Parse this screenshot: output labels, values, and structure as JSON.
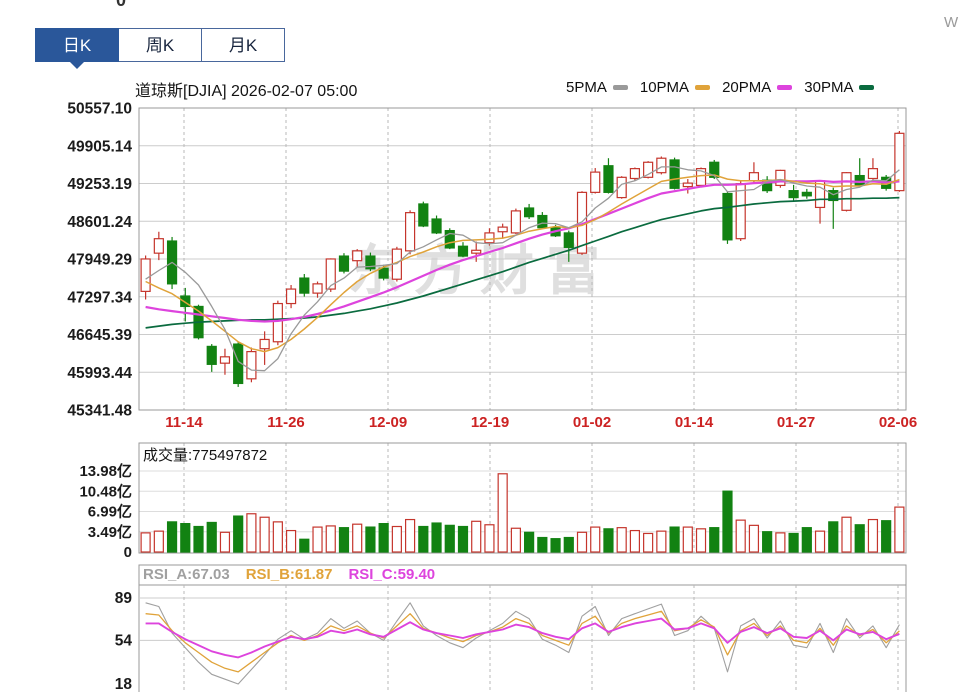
{
  "page": {
    "top_partial_text": "0",
    "corner_mark": "W",
    "watermark": "东方财富"
  },
  "tabs": [
    {
      "label": "日K",
      "active": true
    },
    {
      "label": "周K",
      "active": false
    },
    {
      "label": "月K",
      "active": false
    }
  ],
  "header": {
    "text": "道琼斯[DJIA] 2026-02-07 05:00"
  },
  "legend": [
    {
      "label": "5PMA",
      "color": "#9a9a9a"
    },
    {
      "label": "10PMA",
      "color": "#e0a33a"
    },
    {
      "label": "20PMA",
      "color": "#dd44dd"
    },
    {
      "label": "30PMA",
      "color": "#0a6b3f"
    }
  ],
  "volume_header": {
    "text": "成交量:775497872"
  },
  "rsi_header": [
    {
      "text": "RSI_A:67.03",
      "color": "#a0a0a0"
    },
    {
      "text": "RSI_B:61.87",
      "color": "#e0a33a"
    },
    {
      "text": "RSI_C:59.40",
      "color": "#dd44dd"
    }
  ],
  "colors": {
    "up": "#c5352c",
    "down": "#128212",
    "border": "#999999",
    "grid": "#cccccc",
    "vgrid": "#b9b9b9",
    "axis_label": "#1b1b1b",
    "date_label": "#cc2222",
    "tab_active_bg": "#2a579a",
    "tab_border": "#49679c"
  },
  "chart_data": {
    "type": "candlestick",
    "title": "道琼斯[DJIA]",
    "datetime": "2026-02-07 05:00",
    "panels": {
      "price": {
        "ymax": 50557.1,
        "ymin": 45341.48,
        "y_ticks": [
          "50557.10",
          "49905.14",
          "49253.19",
          "48601.24",
          "47949.29",
          "47297.34",
          "46645.39",
          "45993.44",
          "45341.48"
        ],
        "x_ticks": [
          "11-14",
          "11-26",
          "12-09",
          "12-19",
          "01-02",
          "01-14",
          "01-27",
          "02-06"
        ],
        "candles": [
          [
            47390,
            48010,
            47250,
            47950
          ],
          [
            48050,
            48420,
            47930,
            48300
          ],
          [
            48260,
            48330,
            47430,
            47520
          ],
          [
            47310,
            47450,
            46870,
            47130
          ],
          [
            47130,
            47160,
            46560,
            46590
          ],
          [
            46440,
            46480,
            46000,
            46130
          ],
          [
            46150,
            46400,
            45950,
            46260
          ],
          [
            46480,
            46520,
            45740,
            45800
          ],
          [
            45880,
            46420,
            45820,
            46350
          ],
          [
            46400,
            46700,
            46120,
            46560
          ],
          [
            46520,
            47230,
            46460,
            47180
          ],
          [
            47180,
            47500,
            47100,
            47430
          ],
          [
            47620,
            47690,
            47300,
            47360
          ],
          [
            47360,
            47560,
            47280,
            47520
          ],
          [
            47430,
            47960,
            47380,
            47950
          ],
          [
            48000,
            48050,
            47700,
            47740
          ],
          [
            47920,
            48120,
            47820,
            48090
          ],
          [
            48000,
            48060,
            47740,
            47780
          ],
          [
            47790,
            47850,
            47580,
            47620
          ],
          [
            47600,
            48160,
            47560,
            48120
          ],
          [
            48090,
            48790,
            48030,
            48750
          ],
          [
            48900,
            48940,
            48500,
            48520
          ],
          [
            48640,
            48700,
            48380,
            48400
          ],
          [
            48440,
            48480,
            48120,
            48140
          ],
          [
            48170,
            48240,
            47980,
            48000
          ],
          [
            48050,
            48250,
            47900,
            48100
          ],
          [
            48230,
            48480,
            48180,
            48400
          ],
          [
            48420,
            48560,
            48300,
            48500
          ],
          [
            48400,
            48820,
            48380,
            48780
          ],
          [
            48830,
            48900,
            48640,
            48680
          ],
          [
            48700,
            48760,
            48470,
            48490
          ],
          [
            48490,
            48540,
            48330,
            48350
          ],
          [
            48400,
            48440,
            47900,
            48150
          ],
          [
            48050,
            49120,
            48020,
            49100
          ],
          [
            49100,
            49520,
            49080,
            49450
          ],
          [
            49560,
            49690,
            49080,
            49100
          ],
          [
            49010,
            49380,
            48990,
            49360
          ],
          [
            49340,
            49530,
            49300,
            49510
          ],
          [
            49360,
            49640,
            49340,
            49620
          ],
          [
            49440,
            49720,
            49410,
            49690
          ],
          [
            49660,
            49700,
            49150,
            49170
          ],
          [
            49200,
            49330,
            49080,
            49260
          ],
          [
            49220,
            49530,
            49200,
            49510
          ],
          [
            49620,
            49660,
            49330,
            49360
          ],
          [
            49080,
            49120,
            48210,
            48280
          ],
          [
            48300,
            49300,
            48260,
            49250
          ],
          [
            49300,
            49620,
            49250,
            49440
          ],
          [
            49310,
            49380,
            49090,
            49130
          ],
          [
            49220,
            49490,
            49180,
            49480
          ],
          [
            49130,
            49230,
            48960,
            49010
          ],
          [
            49100,
            49160,
            48990,
            49040
          ],
          [
            48840,
            49310,
            48560,
            49300
          ],
          [
            49130,
            49180,
            48470,
            48960
          ],
          [
            48790,
            49450,
            48770,
            49440
          ],
          [
            49390,
            49690,
            49210,
            49220
          ],
          [
            49340,
            49690,
            49320,
            49510
          ],
          [
            49360,
            49400,
            49130,
            49170
          ],
          [
            49130,
            50160,
            49110,
            50120
          ]
        ],
        "ma": {
          "ma5": [
            47600,
            47750,
            47890,
            47720,
            47500,
            47130,
            46730,
            46180,
            46030,
            46020,
            46230,
            46660,
            46980,
            47210,
            47490,
            47620,
            47810,
            47820,
            47840,
            47870,
            48070,
            48160,
            48280,
            48390,
            48360,
            48230,
            48210,
            48230,
            48360,
            48490,
            48570,
            48560,
            48490,
            48590,
            48830,
            49000,
            49240,
            49300,
            49410,
            49540,
            49540,
            49490,
            49470,
            49390,
            49110,
            49130,
            49150,
            49290,
            49320,
            49260,
            49210,
            49190,
            49060,
            49150,
            49190,
            49310,
            49300,
            49490
          ],
          "ma10": [
            47560,
            47450,
            47350,
            47200,
            47050,
            46880,
            46700,
            46520,
            46400,
            46350,
            46420,
            46560,
            46740,
            46940,
            47160,
            47370,
            47560,
            47700,
            47810,
            47890,
            47990,
            48070,
            48160,
            48230,
            48270,
            48280,
            48290,
            48310,
            48360,
            48430,
            48470,
            48510,
            48490,
            48530,
            48630,
            48760,
            48900,
            49030,
            49160,
            49290,
            49330,
            49360,
            49390,
            49400,
            49330,
            49300,
            49300,
            49300,
            49320,
            49290,
            49260,
            49250,
            49200,
            49210,
            49210,
            49250,
            49240,
            49320
          ],
          "ma20": [
            47120,
            47080,
            47050,
            47020,
            46990,
            46960,
            46930,
            46900,
            46880,
            46870,
            46880,
            46910,
            46950,
            47000,
            47060,
            47130,
            47210,
            47290,
            47370,
            47460,
            47560,
            47660,
            47760,
            47850,
            47930,
            48000,
            48070,
            48140,
            48220,
            48300,
            48370,
            48430,
            48480,
            48550,
            48640,
            48730,
            48820,
            48910,
            49000,
            49080,
            49120,
            49160,
            49200,
            49230,
            49230,
            49240,
            49260,
            49270,
            49290,
            49290,
            49290,
            49300,
            49280,
            49290,
            49280,
            49290,
            49270,
            49290
          ],
          "ma30": [
            46760,
            46790,
            46820,
            46840,
            46860,
            46870,
            46880,
            46890,
            46900,
            46900,
            46910,
            46920,
            46930,
            46950,
            46980,
            47010,
            47050,
            47090,
            47140,
            47190,
            47250,
            47310,
            47380,
            47450,
            47520,
            47590,
            47660,
            47730,
            47810,
            47890,
            47960,
            48030,
            48100,
            48180,
            48260,
            48340,
            48420,
            48490,
            48560,
            48630,
            48680,
            48730,
            48780,
            48820,
            48840,
            48870,
            48900,
            48920,
            48940,
            48950,
            48960,
            48980,
            48980,
            48990,
            48990,
            49000,
            49000,
            49010
          ]
        }
      },
      "volume": {
        "title": "成交量",
        "current": "775497872",
        "unit": "亿",
        "ymax": 13.98,
        "y_ticks": [
          "13.98亿",
          "10.48亿",
          "6.99亿",
          "3.49亿",
          "0"
        ],
        "y_tick_values": [
          13.98,
          10.48,
          6.99,
          3.49,
          0
        ],
        "values": [
          3.3,
          3.6,
          5.2,
          4.9,
          4.4,
          5.1,
          3.4,
          6.2,
          6.6,
          6.0,
          5.2,
          3.7,
          2.2,
          4.3,
          4.5,
          4.2,
          4.8,
          4.3,
          4.9,
          4.4,
          5.6,
          4.4,
          5.0,
          4.6,
          4.4,
          5.3,
          4.7,
          13.5,
          4.1,
          3.4,
          2.5,
          2.3,
          2.5,
          3.4,
          4.3,
          4.0,
          4.2,
          3.7,
          3.2,
          3.6,
          4.3,
          4.3,
          4.0,
          4.2,
          10.5,
          5.5,
          4.6,
          3.5,
          3.3,
          3.2,
          4.2,
          3.6,
          5.2,
          6.0,
          4.7,
          5.6,
          5.4,
          7.75
        ]
      },
      "rsi": {
        "y_ticks": [
          "89",
          "54",
          "18"
        ],
        "y_tick_values": [
          89,
          54,
          18
        ],
        "current": {
          "RSI_A": "67.03",
          "RSI_B": "61.87",
          "RSI_C": "59.40"
        },
        "series": {
          "RSI_A": [
            85,
            82,
            60,
            48,
            36,
            26,
            22,
            18,
            30,
            42,
            55,
            62,
            55,
            60,
            72,
            64,
            70,
            60,
            54,
            70,
            85,
            66,
            58,
            52,
            48,
            56,
            62,
            68,
            78,
            72,
            55,
            50,
            44,
            74,
            82,
            58,
            72,
            76,
            80,
            84,
            58,
            62,
            74,
            64,
            28,
            66,
            72,
            56,
            70,
            50,
            48,
            68,
            44,
            72,
            56,
            66,
            48,
            67.03
          ],
          "RSI_B": [
            76,
            75,
            62,
            52,
            44,
            36,
            31,
            28,
            36,
            44,
            52,
            58,
            54,
            58,
            66,
            62,
            66,
            60,
            56,
            66,
            76,
            64,
            60,
            56,
            53,
            58,
            61,
            65,
            72,
            68,
            58,
            54,
            50,
            68,
            74,
            60,
            68,
            72,
            75,
            78,
            62,
            64,
            71,
            65,
            42,
            62,
            68,
            58,
            66,
            54,
            52,
            64,
            50,
            66,
            58,
            63,
            52,
            61.87
          ],
          "RSI_C": [
            68,
            68,
            61,
            55,
            50,
            45,
            42,
            40,
            44,
            49,
            53,
            57,
            55,
            57,
            62,
            60,
            63,
            59,
            57,
            63,
            69,
            63,
            60,
            58,
            56,
            59,
            61,
            63,
            67,
            65,
            60,
            57,
            55,
            64,
            68,
            61,
            65,
            68,
            70,
            72,
            63,
            64,
            68,
            64,
            52,
            61,
            65,
            60,
            64,
            57,
            56,
            62,
            54,
            63,
            59,
            61,
            55,
            59.4
          ]
        }
      }
    }
  }
}
